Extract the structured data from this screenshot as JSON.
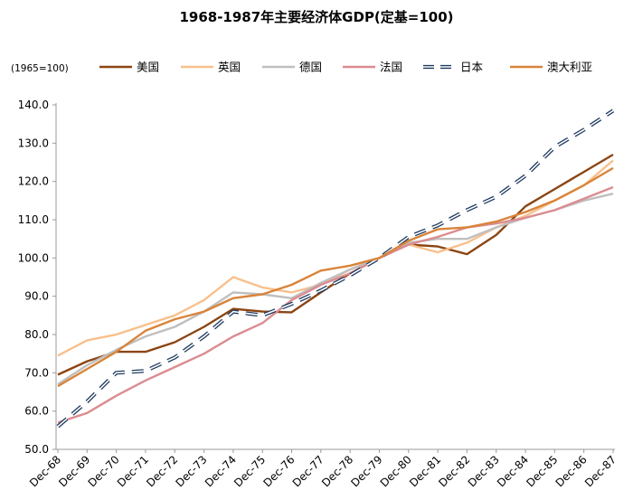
{
  "chart_data": {
    "type": "line",
    "title": "1968-1987年主要经济体GDP(定基=100)",
    "ylabel": "(1965=100)",
    "xlabel": "",
    "ylim": [
      50,
      140
    ],
    "yticks": [
      "50.0",
      "60.0",
      "70.0",
      "80.0",
      "90.0",
      "100.0",
      "110.0",
      "120.0",
      "130.0",
      "140.0"
    ],
    "categories": [
      "Dec-68",
      "Dec-69",
      "Dec-70",
      "Dec-71",
      "Dec-72",
      "Dec-73",
      "Dec-74",
      "Dec-75",
      "Dec-76",
      "Dec-77",
      "Dec-78",
      "Dec-79",
      "Dec-80",
      "Dec-81",
      "Dec-82",
      "Dec-83",
      "Dec-84",
      "Dec-85",
      "Dec-86",
      "Dec-87"
    ],
    "grid": false,
    "legend_position": "top",
    "series": [
      {
        "name": "美国",
        "color": "#8B4513",
        "dash": "solid",
        "values": [
          69.5,
          73,
          75.5,
          75.5,
          78,
          82,
          86.7,
          86,
          85.8,
          91,
          96,
          100,
          103.5,
          103,
          101,
          106,
          113.5,
          118,
          122.5,
          127
        ]
      },
      {
        "name": "英国",
        "color": "#F8C08C",
        "dash": "solid",
        "values": [
          74.5,
          78.5,
          80,
          82.5,
          85,
          89,
          95,
          92.3,
          91,
          93,
          97,
          100,
          103.5,
          101.5,
          104,
          108,
          111,
          115,
          119,
          125.5
        ]
      },
      {
        "name": "德国",
        "color": "#BFBFBF",
        "dash": "solid",
        "values": [
          67,
          72,
          76,
          79.5,
          82,
          86,
          91,
          90.5,
          89.5,
          93.5,
          97,
          100,
          104,
          105,
          105,
          108,
          110.5,
          112.5,
          115,
          116.8
        ]
      },
      {
        "name": "法国",
        "color": "#DC8C90",
        "dash": "solid",
        "values": [
          57,
          59.5,
          64,
          68,
          71.5,
          75,
          79.5,
          83,
          89,
          93,
          96,
          100,
          103.5,
          105.5,
          108,
          109,
          110.5,
          112.5,
          115.5,
          118.5
        ]
      },
      {
        "name": "日本",
        "color": "#1F3A5F",
        "dash": "dashed",
        "values": [
          56,
          62.5,
          70,
          70.5,
          74,
          79.5,
          86,
          85,
          88,
          91.5,
          95.5,
          100,
          105.5,
          108.5,
          112.5,
          116,
          121.5,
          129,
          133.5,
          138.5
        ]
      },
      {
        "name": "澳大利亚",
        "color": "#D9843A",
        "dash": "solid",
        "values": [
          66.5,
          71,
          75.5,
          81,
          84,
          86,
          89.5,
          90.5,
          93,
          96.7,
          98,
          100,
          104.5,
          107.5,
          108,
          109.5,
          112,
          115,
          119,
          123.5
        ]
      }
    ]
  }
}
